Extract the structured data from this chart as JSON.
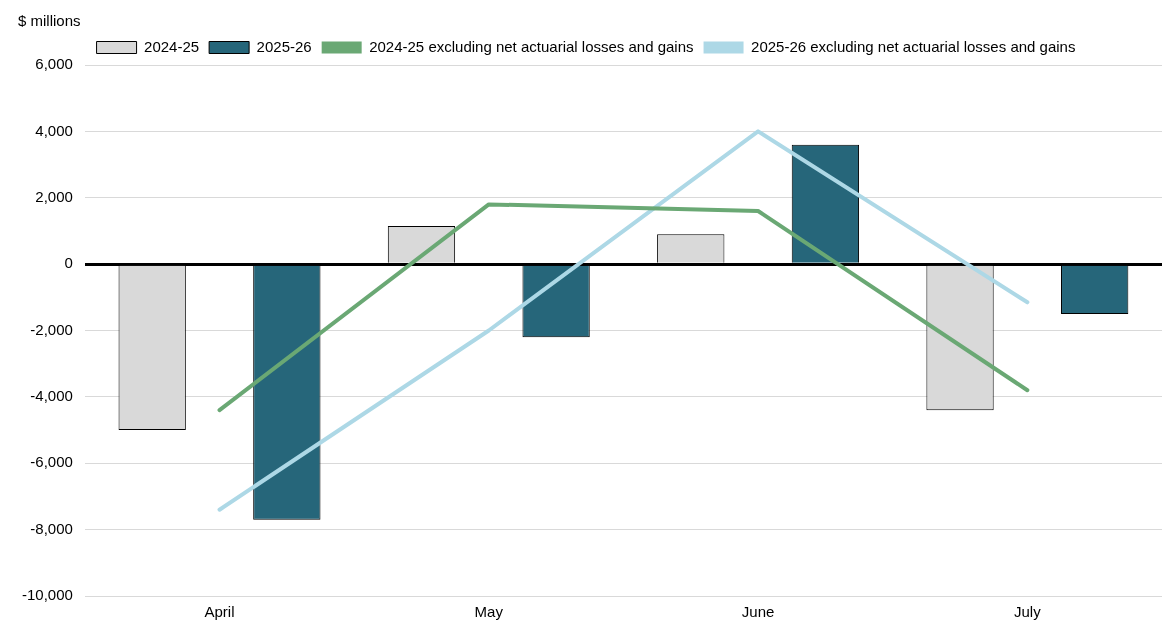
{
  "chart_data": {
    "type": "bar",
    "ylabel": "$ millions",
    "categories": [
      "April",
      "May",
      "June",
      "July"
    ],
    "series": [
      {
        "name": "2024-25",
        "color": "#d9d9d9",
        "values": [
          -5000,
          1150,
          900,
          -4400
        ]
      },
      {
        "name": "2025-26",
        "color": "#26667a",
        "values": [
          -7700,
          -2200,
          3600,
          -1500
        ]
      },
      {
        "name": "2024-25 excluding net actuarial losses and gains",
        "type": "line",
        "color": "#6aa874",
        "values": [
          -4400,
          1800,
          1600,
          -3800
        ]
      },
      {
        "name": "2025-26 excluding net actuarial losses and gains",
        "type": "line",
        "color": "#add8e6",
        "values": [
          -7400,
          -2000,
          4000,
          -1150
        ]
      }
    ],
    "ylim": [
      -10000,
      6000
    ],
    "yticks": [
      {
        "value": -10000,
        "label": "-10,000"
      },
      {
        "value": -8000,
        "label": "-8,000"
      },
      {
        "value": -6000,
        "label": "-6,000"
      },
      {
        "value": -4000,
        "label": "-4,000"
      },
      {
        "value": -2000,
        "label": "-2,000"
      },
      0,
      {
        "value": 2000,
        "label": "2,000"
      },
      {
        "value": 4000,
        "label": "4,000"
      },
      {
        "value": 6000,
        "label": "6,000"
      }
    ],
    "grid": "y",
    "legend": "top",
    "marker": "none"
  }
}
